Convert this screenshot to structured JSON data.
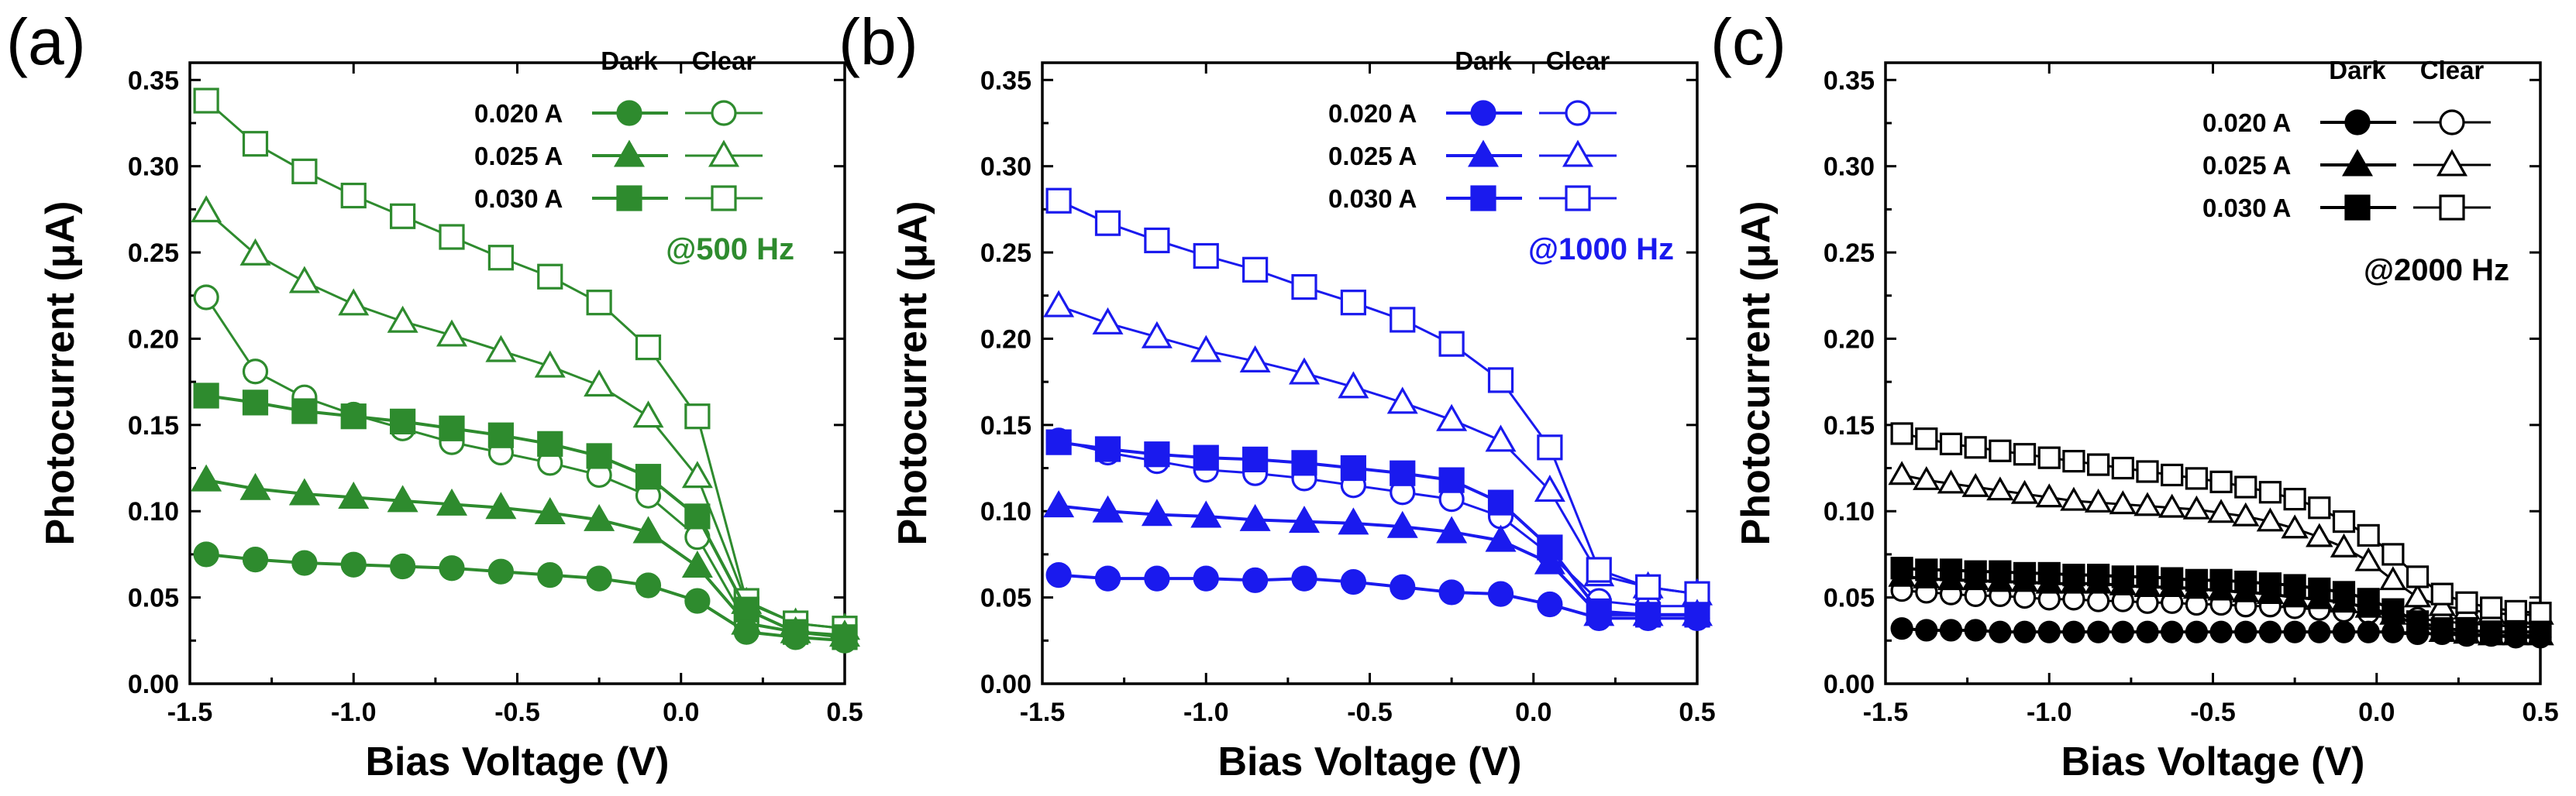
{
  "figure": {
    "panels": [
      "a",
      "b",
      "c"
    ]
  },
  "chart_data": [
    {
      "type": "line",
      "panel_label": "(a)",
      "color": "#2e8b2e",
      "xlabel": "Bias Voltage (V)",
      "ylabel": "Photocurrent (μA)",
      "xlim": [
        -1.5,
        0.5
      ],
      "ylim": [
        0.0,
        0.36
      ],
      "x_ticks": [
        "-1.5",
        "-1.0",
        "-0.5",
        "0.0",
        "0.5"
      ],
      "x_tick_values": [
        -1.5,
        -1.0,
        -0.5,
        0.0,
        0.5
      ],
      "y_ticks": [
        "0.00",
        "0.05",
        "0.10",
        "0.15",
        "0.20",
        "0.25",
        "0.30",
        "0.35"
      ],
      "y_tick_values": [
        0.0,
        0.05,
        0.1,
        0.15,
        0.2,
        0.25,
        0.3,
        0.35
      ],
      "annotation": "@500 Hz",
      "legend": {
        "header_dark": "Dark",
        "header_clear": "Clear",
        "rows": [
          "0.020 A",
          "0.025 A",
          "0.030 A"
        ]
      },
      "x": [
        -1.45,
        -1.3,
        -1.15,
        -1.0,
        -0.85,
        -0.7,
        -0.55,
        -0.4,
        -0.25,
        -0.1,
        0.05,
        0.2,
        0.35,
        0.5
      ],
      "series": [
        {
          "name": "0.020 A Dark",
          "marker": "circle",
          "filled": true,
          "values": [
            0.075,
            0.072,
            0.07,
            0.069,
            0.068,
            0.067,
            0.065,
            0.063,
            0.061,
            0.057,
            0.048,
            0.03,
            0.027,
            0.025
          ]
        },
        {
          "name": "0.025 A Dark",
          "marker": "triangle",
          "filled": true,
          "values": [
            0.118,
            0.113,
            0.11,
            0.108,
            0.106,
            0.104,
            0.102,
            0.099,
            0.095,
            0.088,
            0.068,
            0.035,
            0.03,
            0.028
          ]
        },
        {
          "name": "0.030 A Dark",
          "marker": "square",
          "filled": true,
          "values": [
            0.167,
            0.163,
            0.158,
            0.155,
            0.152,
            0.148,
            0.144,
            0.139,
            0.132,
            0.12,
            0.097,
            0.043,
            0.03,
            0.027
          ]
        },
        {
          "name": "0.020 A Clear",
          "marker": "circle",
          "filled": false,
          "values": [
            0.224,
            0.181,
            0.166,
            0.156,
            0.148,
            0.14,
            0.134,
            0.128,
            0.121,
            0.109,
            0.085,
            0.035,
            0.03,
            0.028
          ]
        },
        {
          "name": "0.025 A Clear",
          "marker": "triangle",
          "filled": false,
          "values": [
            0.274,
            0.249,
            0.233,
            0.22,
            0.21,
            0.202,
            0.193,
            0.184,
            0.173,
            0.155,
            0.12,
            0.047,
            0.035,
            0.032
          ]
        },
        {
          "name": "0.030 A Clear",
          "marker": "square",
          "filled": false,
          "values": [
            0.338,
            0.313,
            0.297,
            0.283,
            0.271,
            0.259,
            0.247,
            0.236,
            0.221,
            0.195,
            0.155,
            0.048,
            0.035,
            0.032
          ]
        }
      ]
    },
    {
      "type": "line",
      "panel_label": "(b)",
      "color": "#1a1aee",
      "xlabel": "Bias Voltage (V)",
      "ylabel": "Photocurrent (μA)",
      "xlim": [
        -1.5,
        0.5
      ],
      "ylim": [
        0.0,
        0.36
      ],
      "x_ticks": [
        "-1.5",
        "-1.0",
        "-0.5",
        "0.0",
        "0.5"
      ],
      "x_tick_values": [
        -1.5,
        -1.0,
        -0.5,
        0.0,
        0.5
      ],
      "y_ticks": [
        "0.00",
        "0.05",
        "0.10",
        "0.15",
        "0.20",
        "0.25",
        "0.30",
        "0.35"
      ],
      "y_tick_values": [
        0.0,
        0.05,
        0.1,
        0.15,
        0.2,
        0.25,
        0.3,
        0.35
      ],
      "annotation": "@1000 Hz",
      "legend": {
        "header_dark": "Dark",
        "header_clear": "Clear",
        "rows": [
          "0.020 A",
          "0.025 A",
          "0.030 A"
        ]
      },
      "x": [
        -1.45,
        -1.3,
        -1.15,
        -1.0,
        -0.85,
        -0.7,
        -0.55,
        -0.4,
        -0.25,
        -0.1,
        0.05,
        0.2,
        0.35,
        0.5
      ],
      "series": [
        {
          "name": "0.020 A Dark",
          "marker": "circle",
          "filled": true,
          "values": [
            0.063,
            0.061,
            0.061,
            0.061,
            0.06,
            0.061,
            0.059,
            0.056,
            0.053,
            0.052,
            0.046,
            0.038,
            0.038,
            0.038
          ]
        },
        {
          "name": "0.025 A Dark",
          "marker": "triangle",
          "filled": true,
          "values": [
            0.103,
            0.1,
            0.098,
            0.097,
            0.095,
            0.094,
            0.093,
            0.091,
            0.088,
            0.083,
            0.07,
            0.04,
            0.04,
            0.04
          ]
        },
        {
          "name": "0.030 A Dark",
          "marker": "square",
          "filled": true,
          "values": [
            0.14,
            0.136,
            0.133,
            0.131,
            0.13,
            0.128,
            0.125,
            0.122,
            0.118,
            0.105,
            0.079,
            0.042,
            0.04,
            0.04
          ]
        },
        {
          "name": "0.020 A Clear",
          "marker": "circle",
          "filled": false,
          "values": [
            0.141,
            0.134,
            0.129,
            0.124,
            0.122,
            0.119,
            0.115,
            0.111,
            0.107,
            0.097,
            0.075,
            0.048,
            0.045,
            0.045
          ]
        },
        {
          "name": "0.025 A Clear",
          "marker": "triangle",
          "filled": false,
          "values": [
            0.219,
            0.209,
            0.201,
            0.193,
            0.187,
            0.18,
            0.172,
            0.163,
            0.153,
            0.141,
            0.112,
            0.063,
            0.056,
            0.052
          ]
        },
        {
          "name": "0.030 A Clear",
          "marker": "square",
          "filled": false,
          "values": [
            0.28,
            0.267,
            0.257,
            0.248,
            0.24,
            0.23,
            0.221,
            0.211,
            0.197,
            0.176,
            0.137,
            0.066,
            0.056,
            0.052
          ]
        }
      ]
    },
    {
      "type": "line",
      "panel_label": "(c)",
      "color": "#000000",
      "xlabel": "Bias Voltage (V)",
      "ylabel": "Photocurrent (μA)",
      "xlim": [
        -1.5,
        0.5
      ],
      "ylim": [
        0.0,
        0.36
      ],
      "x_ticks": [
        "-1.5",
        "-1.0",
        "-0.5",
        "0.0",
        "0.5"
      ],
      "x_tick_values": [
        -1.5,
        -1.0,
        -0.5,
        0.0,
        0.5
      ],
      "y_ticks": [
        "0.00",
        "0.05",
        "0.10",
        "0.15",
        "0.20",
        "0.25",
        "0.30",
        "0.35"
      ],
      "y_tick_values": [
        0.0,
        0.05,
        0.1,
        0.15,
        0.2,
        0.25,
        0.3,
        0.35
      ],
      "annotation": "@2000 Hz",
      "legend": {
        "header_dark": "Dark",
        "header_clear": "Clear",
        "rows": [
          "0.020 A",
          "0.025 A",
          "0.030 A"
        ]
      },
      "x": [
        -1.45,
        -1.375,
        -1.3,
        -1.225,
        -1.15,
        -1.075,
        -1.0,
        -0.925,
        -0.85,
        -0.775,
        -0.7,
        -0.625,
        -0.55,
        -0.475,
        -0.4,
        -0.325,
        -0.25,
        -0.175,
        -0.1,
        -0.025,
        0.05,
        0.125,
        0.2,
        0.275,
        0.35,
        0.425,
        0.5
      ],
      "series": [
        {
          "name": "0.020 A Dark",
          "marker": "circle",
          "filled": true,
          "values": [
            0.032,
            0.031,
            0.031,
            0.031,
            0.03,
            0.03,
            0.03,
            0.03,
            0.03,
            0.03,
            0.03,
            0.03,
            0.03,
            0.03,
            0.03,
            0.03,
            0.03,
            0.03,
            0.03,
            0.03,
            0.03,
            0.029,
            0.029,
            0.028,
            0.028,
            0.027,
            0.027
          ]
        },
        {
          "name": "0.025 A Dark",
          "marker": "triangle",
          "filled": true,
          "values": [
            0.062,
            0.061,
            0.06,
            0.06,
            0.059,
            0.059,
            0.058,
            0.058,
            0.058,
            0.057,
            0.056,
            0.056,
            0.055,
            0.054,
            0.053,
            0.052,
            0.05,
            0.049,
            0.047,
            0.044,
            0.04,
            0.034,
            0.03,
            0.029,
            0.028,
            0.028,
            0.028
          ]
        },
        {
          "name": "0.030 A Dark",
          "marker": "square",
          "filled": true,
          "values": [
            0.067,
            0.066,
            0.066,
            0.065,
            0.065,
            0.064,
            0.064,
            0.063,
            0.063,
            0.062,
            0.062,
            0.061,
            0.06,
            0.06,
            0.059,
            0.058,
            0.057,
            0.055,
            0.053,
            0.049,
            0.043,
            0.036,
            0.032,
            0.031,
            0.03,
            0.03,
            0.03
          ]
        },
        {
          "name": "0.020 A Clear",
          "marker": "circle",
          "filled": false,
          "values": [
            0.054,
            0.053,
            0.052,
            0.051,
            0.051,
            0.05,
            0.049,
            0.049,
            0.048,
            0.048,
            0.047,
            0.047,
            0.046,
            0.046,
            0.045,
            0.045,
            0.044,
            0.043,
            0.042,
            0.041,
            0.04,
            0.038,
            0.036,
            0.035,
            0.034,
            0.033,
            0.033
          ]
        },
        {
          "name": "0.025 A Clear",
          "marker": "triangle",
          "filled": false,
          "values": [
            0.121,
            0.118,
            0.116,
            0.114,
            0.112,
            0.11,
            0.108,
            0.106,
            0.105,
            0.104,
            0.103,
            0.102,
            0.101,
            0.099,
            0.097,
            0.094,
            0.09,
            0.085,
            0.079,
            0.071,
            0.06,
            0.05,
            0.045,
            0.043,
            0.041,
            0.04,
            0.04
          ]
        },
        {
          "name": "0.030 A Clear",
          "marker": "square",
          "filled": false,
          "values": [
            0.145,
            0.142,
            0.139,
            0.137,
            0.135,
            0.133,
            0.131,
            0.129,
            0.127,
            0.125,
            0.123,
            0.121,
            0.119,
            0.117,
            0.114,
            0.111,
            0.107,
            0.102,
            0.094,
            0.086,
            0.075,
            0.062,
            0.052,
            0.047,
            0.044,
            0.042,
            0.041
          ]
        }
      ]
    }
  ]
}
